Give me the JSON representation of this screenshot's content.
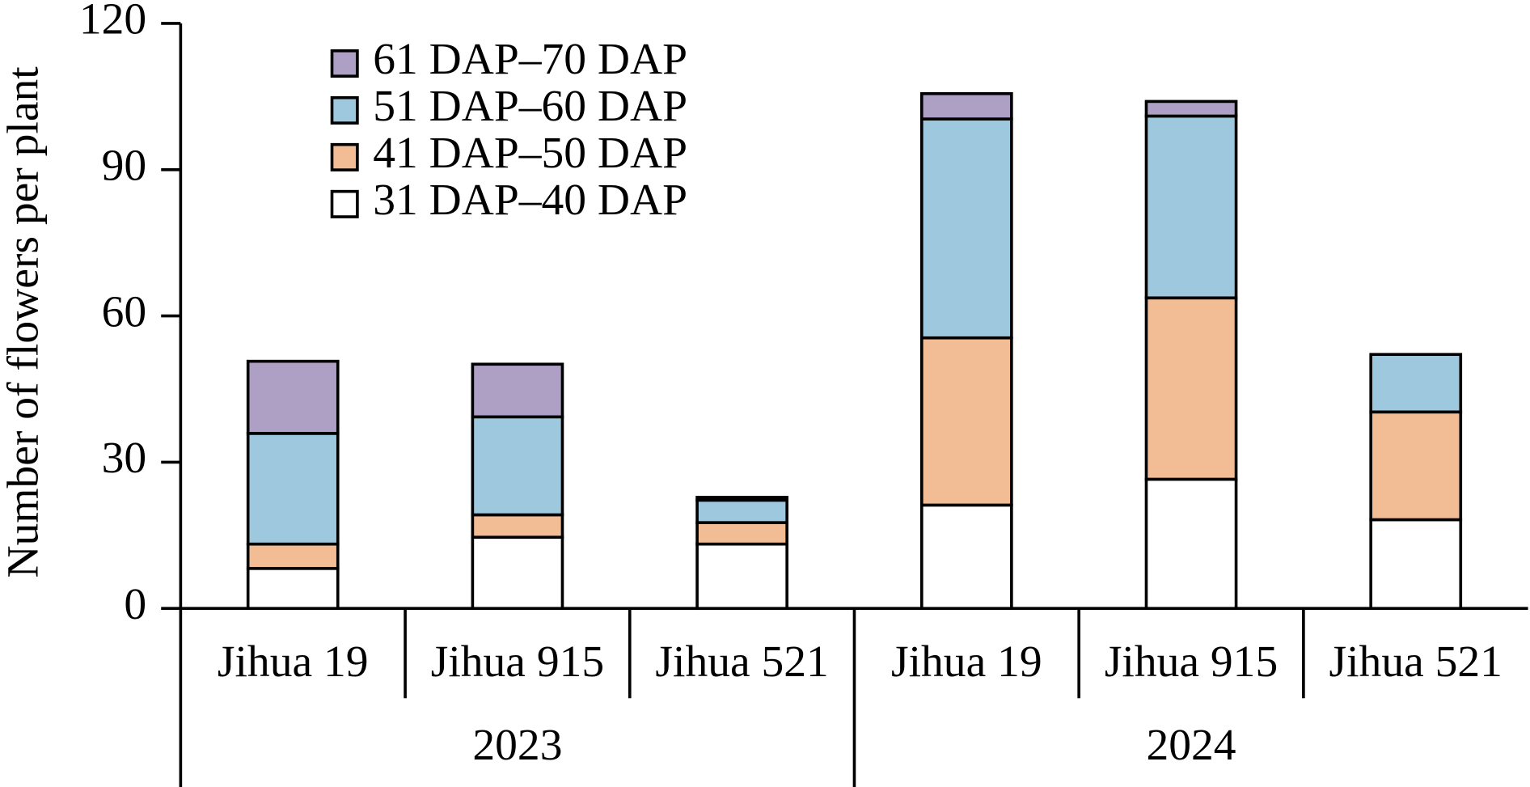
{
  "chart_data": {
    "type": "stacked-bar",
    "y_label": "Number of flowers per plant",
    "groups": [
      {
        "name": "2023",
        "categories": [
          "Jihua 19",
          "Jihua 915",
          "Jihua 521"
        ]
      },
      {
        "name": "2024",
        "categories": [
          "Jihua 19",
          "Jihua 915",
          "Jihua 521"
        ]
      }
    ],
    "series": [
      {
        "name": "61 DAP–70 DAP",
        "color": "#ae9fc4",
        "values": [
          14.8,
          10.8,
          0.6,
          5.2,
          3.0,
          0
        ]
      },
      {
        "name": "51 DAP–60 DAP",
        "color": "#9ec8de",
        "values": [
          22.7,
          20.1,
          4.6,
          44.9,
          37.3,
          11.8
        ]
      },
      {
        "name": "41 DAP–50 DAP",
        "color": "#f2bc94",
        "values": [
          5.0,
          4.6,
          4.4,
          34.3,
          37.2,
          22.1
        ]
      },
      {
        "name": "31 DAP–40 DAP",
        "color": "#ffffff",
        "values": [
          8.2,
          14.6,
          13.2,
          21.2,
          26.5,
          18.2
        ]
      }
    ],
    "ylim": [
      0,
      120
    ],
    "yticks": [
      0,
      30,
      60,
      90,
      120
    ],
    "grid": false,
    "legend": "upper-left"
  }
}
